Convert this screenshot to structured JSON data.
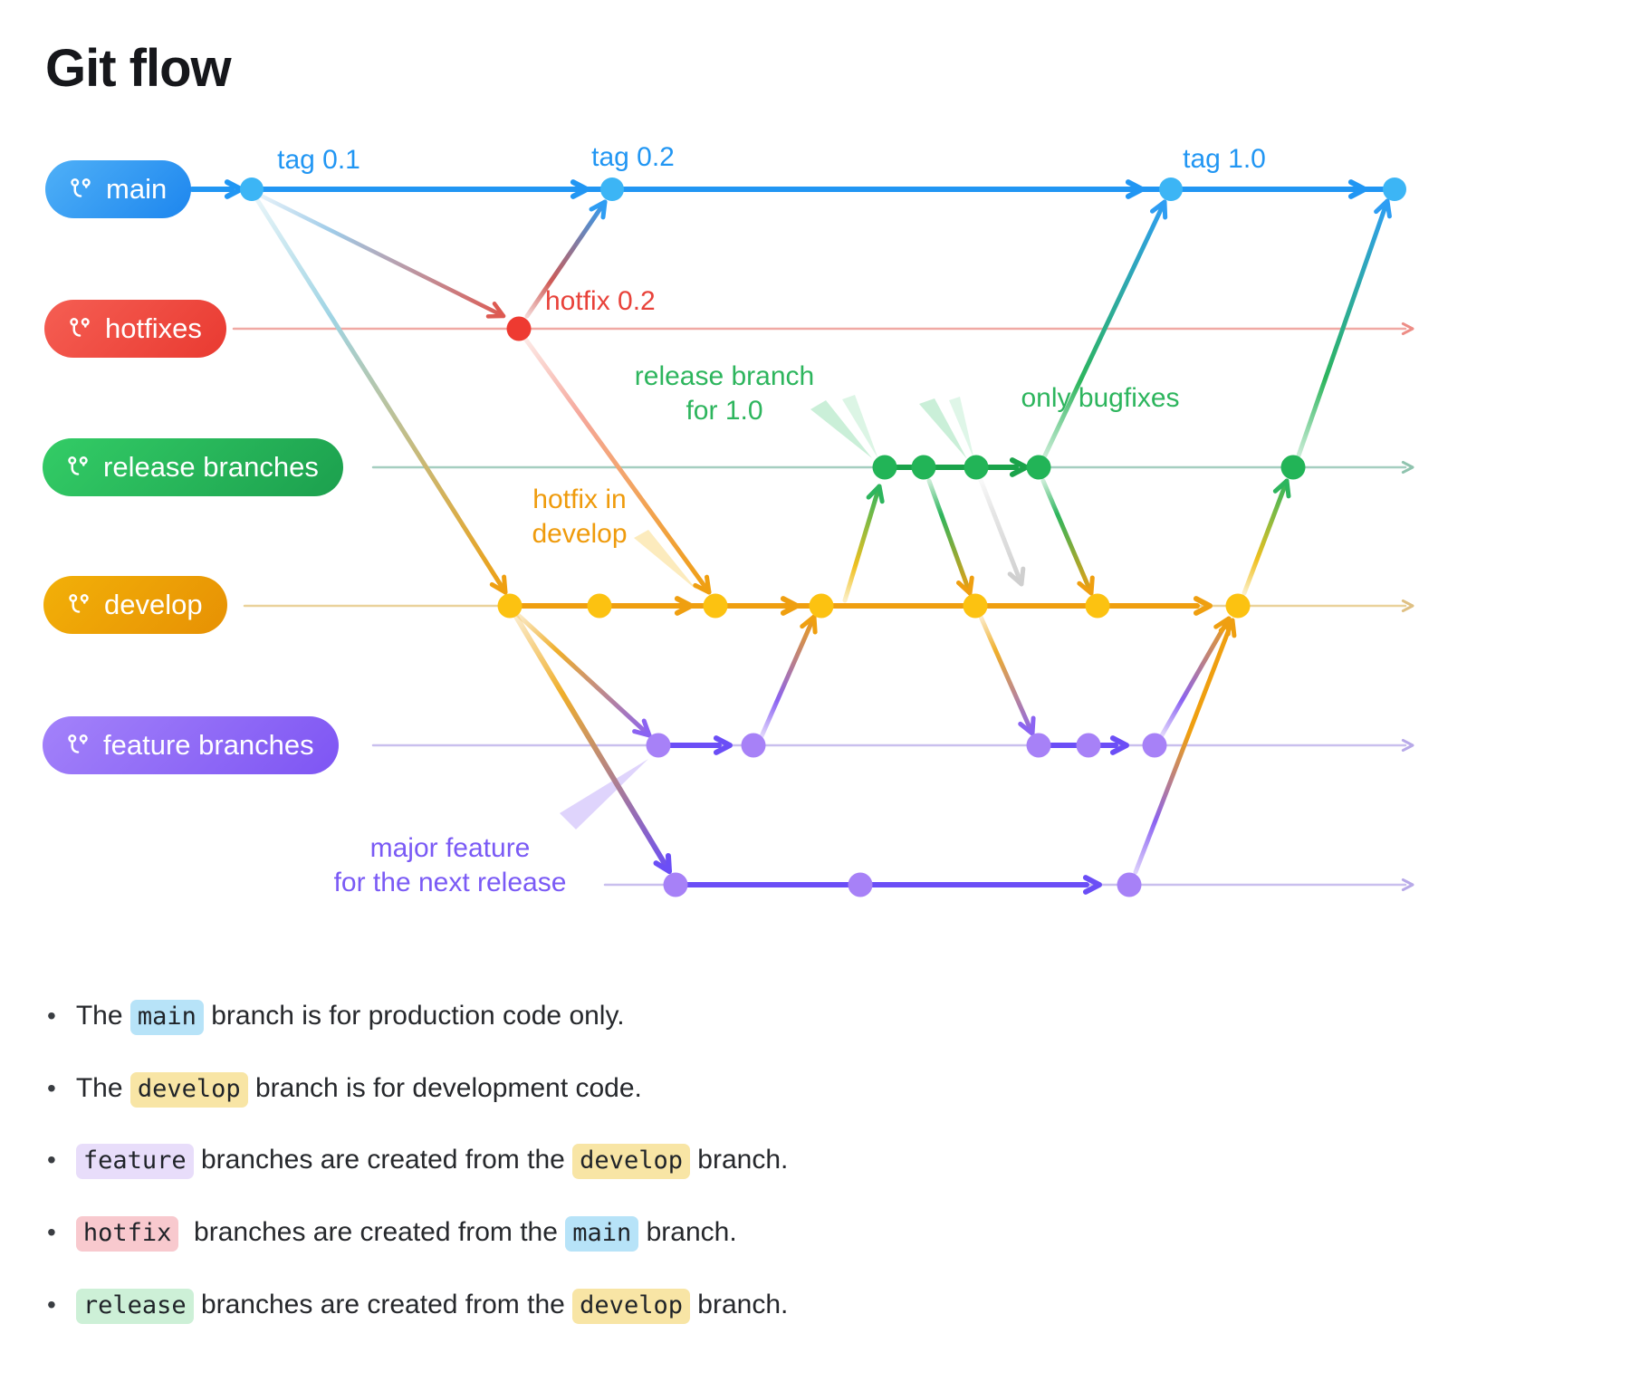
{
  "title": "Git flow",
  "branches": [
    {
      "id": "main",
      "label": "main",
      "accent": "#2196f3"
    },
    {
      "id": "hotfixes",
      "label": "hotfixes",
      "accent": "#ee3a31"
    },
    {
      "id": "release",
      "label": "release branches",
      "accent": "#22b457"
    },
    {
      "id": "develop",
      "label": "develop",
      "accent": "#ef9f10"
    },
    {
      "id": "feature",
      "label": "feature branches",
      "accent": "#8b63f6"
    }
  ],
  "annotations": {
    "tag01": "tag 0.1",
    "tag02": "tag 0.2",
    "tag10": "tag 1.0",
    "hotfix02": "hotfix 0.2",
    "release_branch_line1": "release branch",
    "release_branch_line2": "for 1.0",
    "only_bugfixes": "only bugfixes",
    "hotfix_in_develop_line1": "hotfix in",
    "hotfix_in_develop_line2": "develop",
    "major_feature_line1": "major feature",
    "major_feature_line2": "for the next release"
  },
  "diagram": {
    "commit_counts": {
      "main": 4,
      "hotfixes": 1,
      "release": 5,
      "develop": 7,
      "feature": 5,
      "major_feature": 3
    },
    "flows": [
      "main -> hotfix (hotfix 0.2 branched from tag 0.1)",
      "hotfix -> main (merged at tag 0.2)",
      "main -> develop",
      "hotfix -> develop (hotfix in develop)",
      "develop -> feature (two feature branches)",
      "develop -> major feature for the next release",
      "feature -> develop",
      "develop -> release branch for 1.0",
      "release -> develop (only bugfixes)",
      "release -> main (merged at tag 1.0)",
      "major feature -> develop",
      "develop -> release -> main (final)"
    ]
  },
  "colors": {
    "main_line": "#2196f3",
    "main_dot": "#3cb5f5",
    "hotfix_dot": "#ee3a31",
    "hotfix_line": "#f0a9a4",
    "release_thick": "#1aa34a",
    "release_thin": "#a5cec0",
    "release_dot": "#22b457",
    "develop_thick": "#ef9f10",
    "develop_thin": "#ead29b",
    "develop_dot": "#fcc211",
    "feature_thick": "#6b4ef6",
    "feature_thin": "#c9bfee",
    "feature_dot": "#a781f7",
    "ghost": "#cfcfcf",
    "hl_blue": "#b7e3f8",
    "hl_yellow": "#f8e5a5",
    "hl_purple": "#e8ddfa",
    "hl_pink": "#f8c9ce",
    "hl_green": "#cdf0d7"
  },
  "bullets": [
    [
      {
        "text": "The "
      },
      {
        "text": "main",
        "hl": "blue"
      },
      {
        "text": " branch is for production code only."
      }
    ],
    [
      {
        "text": "The "
      },
      {
        "text": "develop",
        "hl": "yellow"
      },
      {
        "text": " branch is for development code."
      }
    ],
    [
      {
        "text": "feature",
        "hl": "purple"
      },
      {
        "text": " branches are created from the "
      },
      {
        "text": "develop",
        "hl": "yellow"
      },
      {
        "text": " branch."
      }
    ],
    [
      {
        "text": "hotfix",
        "hl": "pink"
      },
      {
        "text": "  branches are created from the "
      },
      {
        "text": "main",
        "hl": "blue"
      },
      {
        "text": " branch."
      }
    ],
    [
      {
        "text": "release",
        "hl": "green"
      },
      {
        "text": " branches are created from the "
      },
      {
        "text": "develop",
        "hl": "yellow"
      },
      {
        "text": " branch."
      }
    ]
  ]
}
